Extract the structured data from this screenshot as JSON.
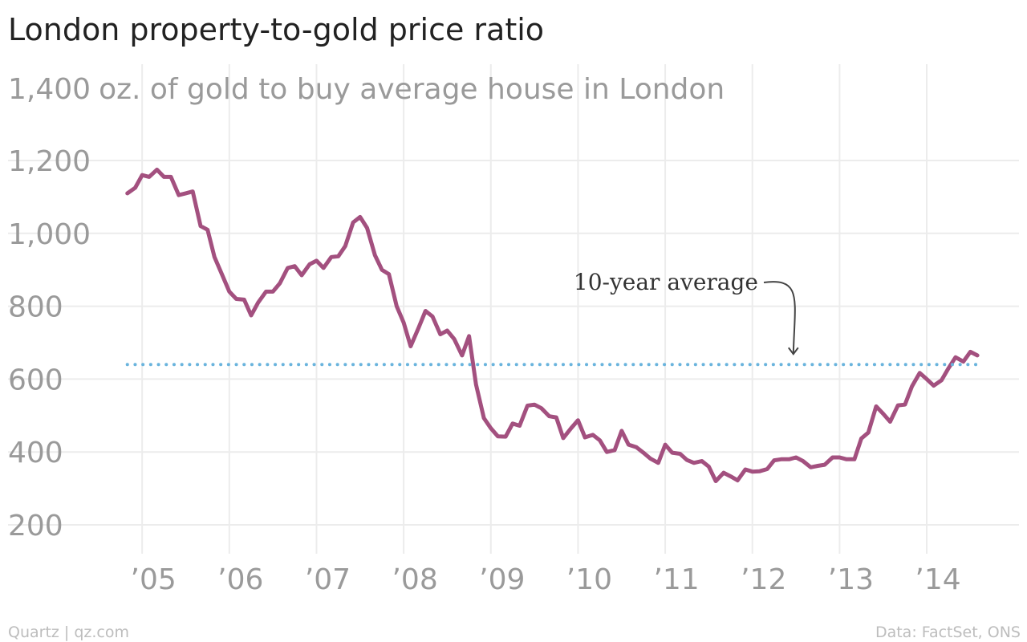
{
  "chart_data": {
    "type": "line",
    "title": "London property-to-gold price ratio",
    "ylabel": "oz. of gold to buy average house in London",
    "ylim": [
      150,
      1400
    ],
    "y_ticks": [
      {
        "value": 200,
        "label": "200"
      },
      {
        "value": 400,
        "label": "400"
      },
      {
        "value": 600,
        "label": "600"
      },
      {
        "value": 800,
        "label": "800"
      },
      {
        "value": 1000,
        "label": "1,000"
      },
      {
        "value": 1200,
        "label": "1,200"
      },
      {
        "value": 1400,
        "label": "1,400"
      }
    ],
    "xlim": [
      2004.75,
      2014.92
    ],
    "x_ticks": [
      {
        "value": 2005,
        "label": "’05"
      },
      {
        "value": 2006,
        "label": "’06"
      },
      {
        "value": 2007,
        "label": "’07"
      },
      {
        "value": 2008,
        "label": "’08"
      },
      {
        "value": 2009,
        "label": "’09"
      },
      {
        "value": 2010,
        "label": "’10"
      },
      {
        "value": 2011,
        "label": "’11"
      },
      {
        "value": 2012,
        "label": "’12"
      },
      {
        "value": 2013,
        "label": "’13"
      },
      {
        "value": 2014,
        "label": "’14"
      }
    ],
    "grid": true,
    "series": [
      {
        "color": "#a3507f",
        "x": [
          2004.83,
          2004.92,
          2005.0,
          2005.08,
          2005.17,
          2005.25,
          2005.33,
          2005.42,
          2005.5,
          2005.58,
          2005.67,
          2005.75,
          2005.83,
          2005.92,
          2006.0,
          2006.08,
          2006.17,
          2006.25,
          2006.33,
          2006.42,
          2006.5,
          2006.58,
          2006.67,
          2006.75,
          2006.83,
          2006.92,
          2007.0,
          2007.08,
          2007.17,
          2007.25,
          2007.33,
          2007.42,
          2007.5,
          2007.58,
          2007.67,
          2007.75,
          2007.83,
          2007.92,
          2008.0,
          2008.08,
          2008.17,
          2008.25,
          2008.33,
          2008.42,
          2008.5,
          2008.58,
          2008.67,
          2008.75,
          2008.83,
          2008.92,
          2009.0,
          2009.08,
          2009.17,
          2009.25,
          2009.33,
          2009.42,
          2009.5,
          2009.58,
          2009.67,
          2009.75,
          2009.83,
          2009.92,
          2010.0,
          2010.08,
          2010.17,
          2010.25,
          2010.33,
          2010.42,
          2010.5,
          2010.58,
          2010.67,
          2010.75,
          2010.83,
          2010.92,
          2011.0,
          2011.08,
          2011.17,
          2011.25,
          2011.33,
          2011.42,
          2011.5,
          2011.58,
          2011.67,
          2011.75,
          2011.83,
          2011.92,
          2012.0,
          2012.08,
          2012.17,
          2012.25,
          2012.33,
          2012.42,
          2012.5,
          2012.58,
          2012.67,
          2012.75,
          2012.83,
          2012.92,
          2013.0,
          2013.08,
          2013.17,
          2013.25,
          2013.33,
          2013.42,
          2013.5,
          2013.58,
          2013.67,
          2013.75,
          2013.83,
          2013.92,
          2014.0,
          2014.08,
          2014.17,
          2014.25,
          2014.33,
          2014.42,
          2014.5,
          2014.58
        ],
        "values": [
          1110,
          1125,
          1160,
          1155,
          1175,
          1155,
          1155,
          1105,
          1110,
          1115,
          1020,
          1010,
          935,
          885,
          840,
          820,
          818,
          775,
          810,
          840,
          840,
          863,
          905,
          910,
          885,
          915,
          925,
          905,
          935,
          937,
          965,
          1030,
          1045,
          1015,
          940,
          900,
          888,
          800,
          755,
          690,
          740,
          787,
          772,
          723,
          733,
          710,
          665,
          718,
          585,
          493,
          465,
          443,
          442,
          478,
          472,
          527,
          530,
          520,
          498,
          495,
          438,
          465,
          487,
          440,
          447,
          432,
          400,
          405,
          458,
          420,
          413,
          398,
          382,
          370,
          420,
          398,
          395,
          378,
          370,
          375,
          360,
          320,
          343,
          333,
          322,
          352,
          346,
          347,
          353,
          377,
          380,
          380,
          385,
          375,
          358,
          362,
          365,
          385,
          385,
          380,
          380,
          437,
          453,
          525,
          505,
          483,
          528,
          530,
          580,
          617,
          600,
          582,
          597,
          630,
          660,
          648,
          675,
          665
        ]
      },
      {
        "name": "10-year average",
        "color": "#6ab4dd",
        "style": "dotted",
        "x": [
          2004.83,
          2014.58
        ],
        "values": [
          640,
          640
        ]
      }
    ],
    "annotations": [
      {
        "text": "10-year average",
        "x": 2012.47,
        "y": 640
      }
    ],
    "footer_left": "Quartz | qz.com",
    "footer_right": "Data: FactSet, ONS"
  }
}
